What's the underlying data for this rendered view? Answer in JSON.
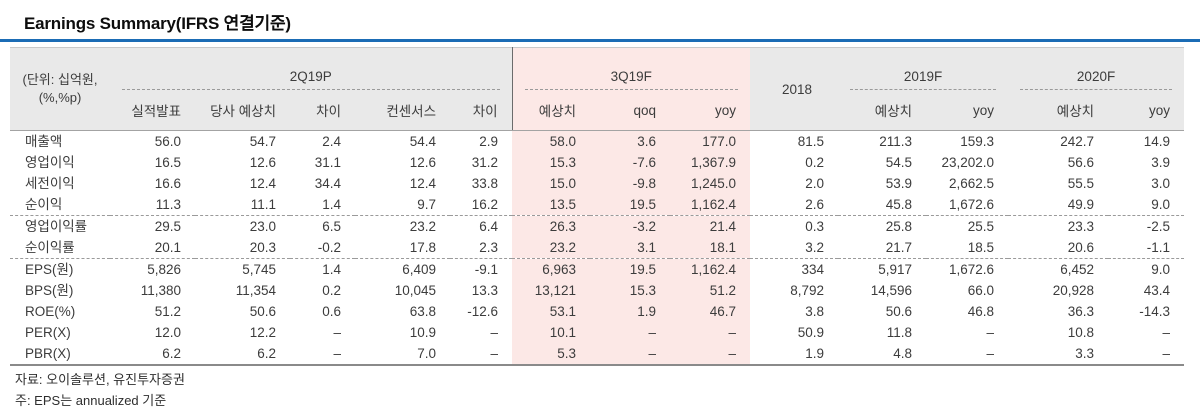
{
  "title": "Earnings Summary(IFRS 연결기준)",
  "colors": {
    "accent_blue": "#1b6cb5",
    "header_bg": "#e9e9e9",
    "highlight_pink": "#fce8e6"
  },
  "table": {
    "unit_label_line1": "(단위: 십억원,",
    "unit_label_line2": "(%,%p)",
    "groups": [
      {
        "label": "2Q19P",
        "cols": [
          "실적발표",
          "당사 예상치",
          "차이",
          "컨센서스",
          "차이"
        ]
      },
      {
        "label": "3Q19F",
        "cols": [
          "예상치",
          "qoq",
          "yoy"
        ],
        "highlight": true
      },
      {
        "label": "2018",
        "cols": []
      },
      {
        "label": "2019F",
        "cols": [
          "예상치",
          "yoy"
        ]
      },
      {
        "label": "2020F",
        "cols": [
          "예상치",
          "yoy"
        ]
      }
    ],
    "highlight_value_indexes": [
      5,
      6,
      7
    ],
    "rows": [
      {
        "label": "매출액",
        "sep": false,
        "values": [
          "56.0",
          "54.7",
          "2.4",
          "54.4",
          "2.9",
          "58.0",
          "3.6",
          "177.0",
          "81.5",
          "211.3",
          "159.3",
          "242.7",
          "14.9"
        ]
      },
      {
        "label": "영업이익",
        "sep": false,
        "values": [
          "16.5",
          "12.6",
          "31.1",
          "12.6",
          "31.2",
          "15.3",
          "-7.6",
          "1,367.9",
          "0.2",
          "54.5",
          "23,202.0",
          "56.6",
          "3.9"
        ]
      },
      {
        "label": "세전이익",
        "sep": false,
        "values": [
          "16.6",
          "12.4",
          "34.4",
          "12.4",
          "33.8",
          "15.0",
          "-9.8",
          "1,245.0",
          "2.0",
          "53.9",
          "2,662.5",
          "55.5",
          "3.0"
        ]
      },
      {
        "label": "순이익",
        "sep": false,
        "values": [
          "11.3",
          "11.1",
          "1.4",
          "9.7",
          "16.2",
          "13.5",
          "19.5",
          "1,162.4",
          "2.6",
          "45.8",
          "1,672.6",
          "49.9",
          "9.0"
        ]
      },
      {
        "label": "영업이익률",
        "sep": true,
        "values": [
          "29.5",
          "23.0",
          "6.5",
          "23.2",
          "6.4",
          "26.3",
          "-3.2",
          "21.4",
          "0.3",
          "25.8",
          "25.5",
          "23.3",
          "-2.5"
        ]
      },
      {
        "label": "순이익률",
        "sep": false,
        "values": [
          "20.1",
          "20.3",
          "-0.2",
          "17.8",
          "2.3",
          "23.2",
          "3.1",
          "18.1",
          "3.2",
          "21.7",
          "18.5",
          "20.6",
          "-1.1"
        ]
      },
      {
        "label": "EPS(원)",
        "sep": true,
        "values": [
          "5,826",
          "5,745",
          "1.4",
          "6,409",
          "-9.1",
          "6,963",
          "19.5",
          "1,162.4",
          "334",
          "5,917",
          "1,672.6",
          "6,452",
          "9.0"
        ]
      },
      {
        "label": "BPS(원)",
        "sep": false,
        "values": [
          "11,380",
          "11,354",
          "0.2",
          "10,045",
          "13.3",
          "13,121",
          "15.3",
          "51.2",
          "8,792",
          "14,596",
          "66.0",
          "20,928",
          "43.4"
        ]
      },
      {
        "label": "ROE(%)",
        "sep": false,
        "values": [
          "51.2",
          "50.6",
          "0.6",
          "63.8",
          "-12.6",
          "53.1",
          "1.9",
          "46.7",
          "3.8",
          "50.6",
          "46.8",
          "36.3",
          "-14.3"
        ]
      },
      {
        "label": "PER(X)",
        "sep": false,
        "values": [
          "12.0",
          "12.2",
          "–",
          "10.9",
          "–",
          "10.1",
          "–",
          "–",
          "50.9",
          "11.8",
          "–",
          "10.8",
          "–"
        ]
      },
      {
        "label": "PBR(X)",
        "sep": false,
        "values": [
          "6.2",
          "6.2",
          "–",
          "7.0",
          "–",
          "5.3",
          "–",
          "–",
          "1.9",
          "4.8",
          "–",
          "3.3",
          "–"
        ]
      }
    ]
  },
  "footer": {
    "source": "자료: 오이솔루션, 유진투자증권",
    "note": "주: EPS는 annualized 기준"
  }
}
